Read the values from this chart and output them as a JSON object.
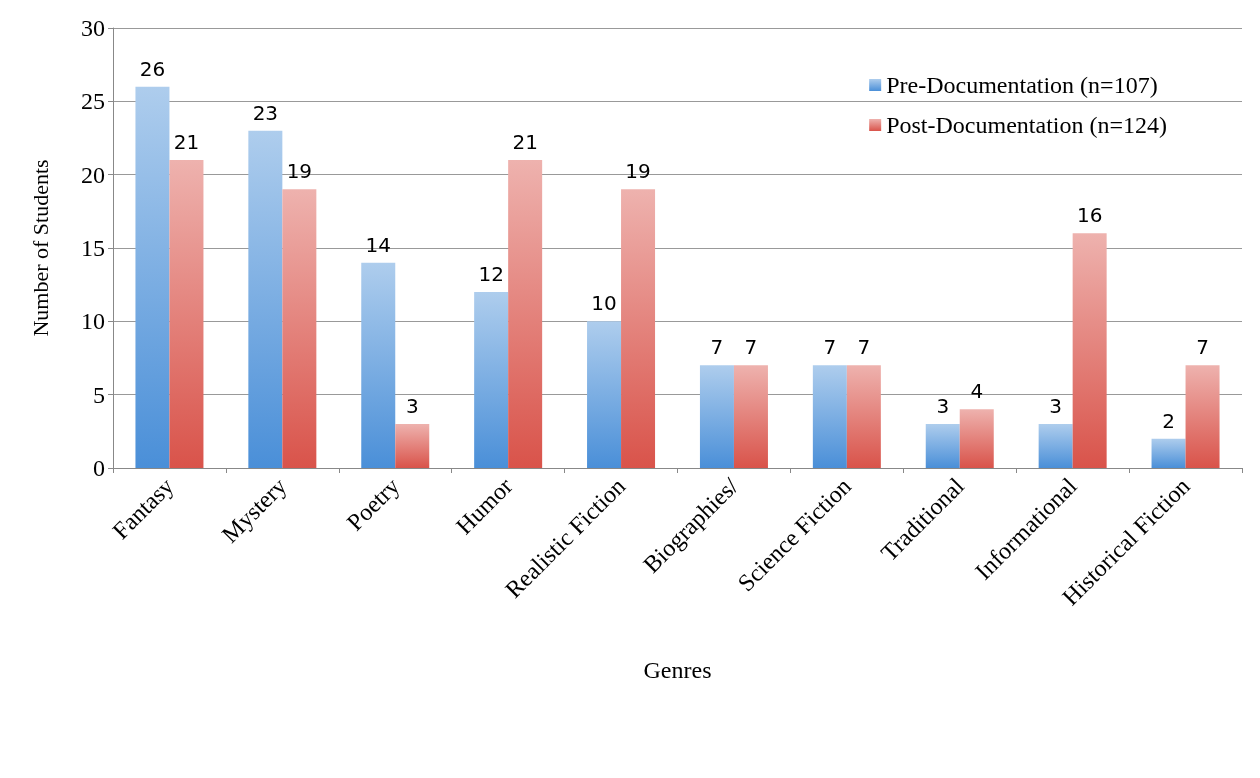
{
  "chart_data": {
    "type": "bar",
    "xlabel": "Genres",
    "ylabel": "Number of Students",
    "categories": [
      "Fantasy",
      "Mystery",
      "Poetry",
      "Humor",
      "Realistic Fiction",
      "Biographies/",
      "Science Fiction",
      "Traditional",
      "Informational",
      "Historical Fiction"
    ],
    "series": [
      {
        "name": "Pre-Documentation (n=107)",
        "color": "#4a8fd8",
        "values": [
          26,
          23,
          14,
          12,
          10,
          7,
          7,
          3,
          3,
          2
        ]
      },
      {
        "name": "Post-Documentation (n=124)",
        "color": "#d9534a",
        "values": [
          21,
          19,
          3,
          21,
          19,
          7,
          7,
          4,
          16,
          7
        ]
      }
    ],
    "ylim": [
      0,
      30
    ],
    "yticks": [
      0,
      5,
      10,
      15,
      20,
      25,
      30
    ],
    "grid": "y",
    "legend": "top right",
    "data_labels": true
  }
}
